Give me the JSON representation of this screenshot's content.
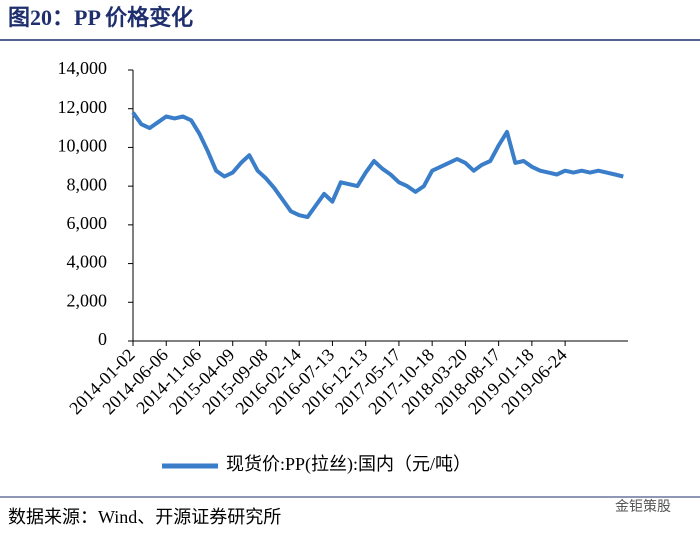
{
  "chart_data": {
    "type": "line",
    "title": "图20：PP 价格变化",
    "source": "数据来源：Wind、开源证券研究所",
    "watermark": "金钜策股",
    "categories": [
      "2014-01-02",
      null,
      null,
      null,
      "2014-06-06",
      null,
      null,
      null,
      "2014-11-06",
      null,
      null,
      null,
      "2015-04-09",
      null,
      null,
      null,
      "2015-09-08",
      null,
      null,
      null,
      "2016-02-14",
      null,
      null,
      null,
      "2016-07-13",
      null,
      null,
      null,
      "2016-12-13",
      null,
      null,
      null,
      "2017-05-17",
      null,
      null,
      null,
      "2017-10-18",
      null,
      null,
      null,
      "2018-03-20",
      null,
      null,
      null,
      "2018-08-17",
      null,
      null,
      null,
      "2019-01-18",
      null,
      null,
      null,
      "2019-06-24",
      null,
      null,
      null,
      null,
      null,
      null,
      null
    ],
    "series": [
      {
        "name": "现货价:PP(拉丝):国内（元/吨）",
        "color": "#3a7dc9",
        "values": [
          11800,
          11200,
          11000,
          11300,
          11600,
          11500,
          11600,
          11400,
          10700,
          9800,
          8800,
          8500,
          8700,
          9200,
          9600,
          8800,
          8400,
          7900,
          7300,
          6700,
          6500,
          6400,
          7000,
          7600,
          7200,
          8200,
          8100,
          8000,
          8700,
          9300,
          8900,
          8600,
          8200,
          8000,
          7700,
          8000,
          8800,
          9000,
          9200,
          9400,
          9200,
          8800,
          9100,
          9300,
          10100,
          10800,
          9200,
          9300,
          9000,
          8800,
          8700,
          8600,
          8800,
          8700,
          8800,
          8700,
          8800,
          8700,
          8600,
          8500
        ]
      }
    ],
    "ylim": [
      0,
      14000
    ],
    "yticks": [
      0,
      {
        "value": 2000,
        "label": "2,000"
      },
      {
        "value": 4000,
        "label": "4,000"
      },
      {
        "value": 6000,
        "label": "6,000"
      },
      {
        "value": 8000,
        "label": "8,000"
      },
      {
        "value": 10000,
        "label": "10,000"
      },
      {
        "value": 12000,
        "label": "12,000"
      },
      {
        "value": 14000,
        "label": "14,000"
      }
    ],
    "grid": false
  }
}
